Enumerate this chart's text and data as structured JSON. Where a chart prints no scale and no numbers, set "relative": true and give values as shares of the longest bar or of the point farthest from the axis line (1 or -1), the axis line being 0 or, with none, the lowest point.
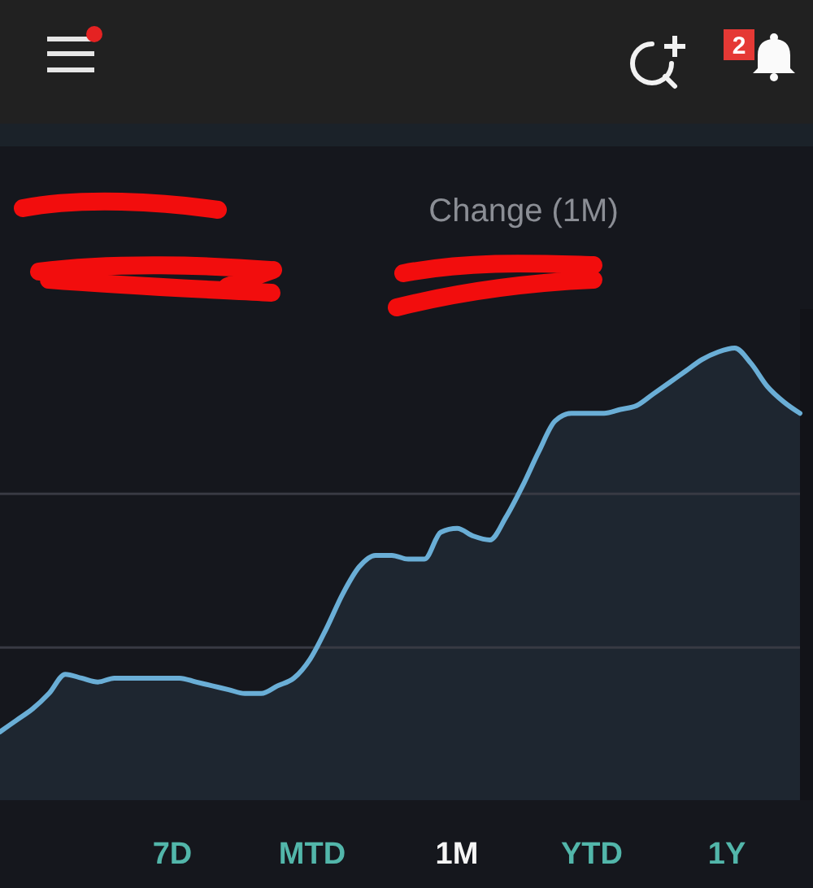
{
  "chart_data": {
    "type": "area",
    "relative": true,
    "categories": [
      null,
      null,
      null,
      null,
      null,
      null,
      null,
      null,
      null,
      null,
      null,
      null,
      null,
      null,
      null,
      null,
      null,
      null,
      null,
      null,
      null,
      null,
      null,
      null,
      null,
      null,
      null,
      null,
      null,
      null,
      null,
      null,
      null,
      null,
      null,
      null,
      null,
      null,
      null,
      null,
      null,
      null,
      null,
      null,
      null,
      null,
      null,
      null,
      null,
      null
    ],
    "series": [
      {
        "color": "#6aaed6",
        "values": [
          0,
          0.03,
          0.06,
          0.1,
          0.15,
          0.14,
          0.13,
          0.14,
          0.14,
          0.14,
          0.14,
          0.14,
          0.13,
          0.12,
          0.11,
          0.1,
          0.1,
          0.12,
          0.14,
          0.19,
          0.27,
          0.36,
          0.43,
          0.46,
          0.46,
          0.45,
          0.45,
          0.52,
          0.53,
          0.51,
          0.5,
          0.56,
          0.64,
          0.73,
          0.81,
          0.83,
          0.83,
          0.83,
          0.84,
          0.85,
          0.88,
          0.91,
          0.94,
          0.97,
          0.99,
          1,
          0.96,
          0.9,
          0.86,
          0.83
        ]
      }
    ],
    "ref_lines": [
      {
        "axis": "y",
        "value": 0.62,
        "color": "#383a43"
      },
      {
        "axis": "y",
        "value": 0.22,
        "color": "#383a43"
      }
    ],
    "annotations": [
      "Change (1M)",
      "7D",
      "MTD",
      "1M",
      "YTD",
      "1Y",
      "2"
    ]
  }
}
